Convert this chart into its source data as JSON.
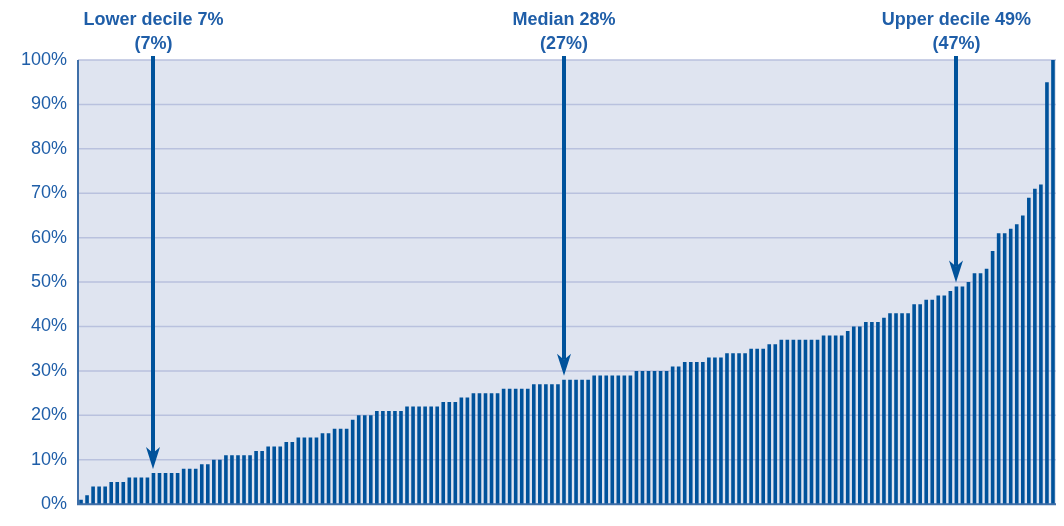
{
  "chart_data": {
    "type": "bar",
    "categories": [
      null,
      null,
      null,
      null,
      null,
      null,
      null,
      null,
      null,
      null,
      null,
      null,
      null,
      null,
      null,
      null,
      null,
      null,
      null,
      null,
      null,
      null,
      null,
      null,
      null,
      null,
      null,
      null,
      null,
      null,
      null,
      null,
      null,
      null,
      null,
      null,
      null,
      null,
      null,
      null,
      null,
      null,
      null,
      null,
      null,
      null,
      null,
      null,
      null,
      null,
      null,
      null,
      null,
      null,
      null,
      null,
      null,
      null,
      null,
      null,
      null,
      null,
      null,
      null,
      null,
      null,
      null,
      null,
      null,
      null,
      null,
      null,
      null,
      null,
      null,
      null,
      null,
      null,
      null,
      null,
      null,
      null,
      null,
      null,
      null,
      null,
      null,
      null,
      null,
      null,
      null,
      null,
      null,
      null,
      null,
      null,
      null,
      null,
      null,
      null,
      null,
      null,
      null,
      null,
      null,
      null,
      null,
      null,
      null,
      null,
      null,
      null,
      null,
      null,
      null,
      null,
      null,
      null,
      null,
      null,
      null,
      null,
      null,
      null,
      null,
      null,
      null,
      null,
      null,
      null,
      null,
      null,
      null,
      null,
      null,
      null,
      null,
      null,
      null,
      null,
      null,
      null,
      null,
      null,
      null,
      null,
      null,
      null,
      null,
      null,
      null,
      null,
      null,
      null,
      null,
      null,
      null,
      null,
      null,
      null,
      null,
      null
    ],
    "values": [
      1,
      2,
      4,
      4,
      4,
      5,
      5,
      5,
      6,
      6,
      6,
      6,
      7,
      7,
      7,
      7,
      7,
      8,
      8,
      8,
      9,
      9,
      10,
      10,
      11,
      11,
      11,
      11,
      11,
      12,
      12,
      13,
      13,
      13,
      14,
      14,
      15,
      15,
      15,
      15,
      16,
      16,
      17,
      17,
      17,
      19,
      20,
      20,
      20,
      21,
      21,
      21,
      21,
      21,
      22,
      22,
      22,
      22,
      22,
      22,
      23,
      23,
      23,
      24,
      24,
      25,
      25,
      25,
      25,
      25,
      26,
      26,
      26,
      26,
      26,
      27,
      27,
      27,
      27,
      27,
      28,
      28,
      28,
      28,
      28,
      29,
      29,
      29,
      29,
      29,
      29,
      29,
      30,
      30,
      30,
      30,
      30,
      30,
      31,
      31,
      32,
      32,
      32,
      32,
      33,
      33,
      33,
      34,
      34,
      34,
      34,
      35,
      35,
      35,
      36,
      36,
      37,
      37,
      37,
      37,
      37,
      37,
      37,
      38,
      38,
      38,
      38,
      39,
      40,
      40,
      41,
      41,
      41,
      42,
      43,
      43,
      43,
      43,
      45,
      45,
      46,
      46,
      47,
      47,
      48,
      49,
      49,
      50,
      52,
      52,
      53,
      57,
      61,
      61,
      62,
      63,
      65,
      69,
      71,
      72,
      95,
      100
    ],
    "color": "#00529b",
    "ylim": [
      0,
      100
    ],
    "yticks": [
      {
        "value": 0,
        "label": "0%"
      },
      {
        "value": 10,
        "label": "10%"
      },
      {
        "value": 20,
        "label": "20%"
      },
      {
        "value": 30,
        "label": "30%"
      },
      {
        "value": 40,
        "label": "40%"
      },
      {
        "value": 50,
        "label": "50%"
      },
      {
        "value": 60,
        "label": "60%"
      },
      {
        "value": 70,
        "label": "70%"
      },
      {
        "value": 80,
        "label": "80%"
      },
      {
        "value": 90,
        "label": "90%"
      },
      {
        "value": 100,
        "label": "100%"
      }
    ],
    "grid": "y",
    "annotations": [
      "Lower decile 7%\n(7%)",
      "Median 28%\n(27%)",
      "Upper decile 49%\n(47%)"
    ]
  }
}
